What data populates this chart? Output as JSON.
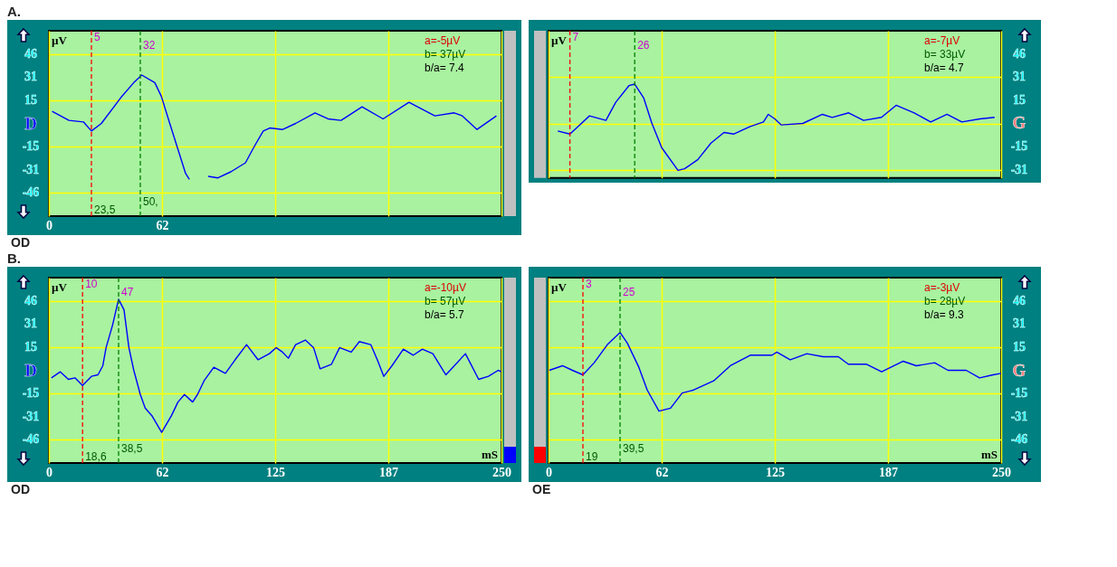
{
  "chart_data": [
    {
      "type": "line",
      "title": "A.",
      "ylabel": "µV",
      "xlim": [
        0,
        250
      ],
      "ylim": [
        -61.3,
        61.3
      ],
      "grid": true,
      "xticks": [
        0,
        {
          "value": 62.5,
          "label": "62"
        },
        {
          "value": 125,
          "label": null
        },
        {
          "value": 187.5,
          "label": null
        },
        {
          "value": 250,
          "label": null
        }
      ],
      "yticks": [
        {
          "value": -46,
          "label": "-46"
        },
        {
          "value": -30.7,
          "label": "-31"
        },
        {
          "value": -15.3,
          "label": "-15"
        },
        {
          "value": 0,
          "label": "D"
        },
        {
          "value": 15.3,
          "label": "15"
        },
        {
          "value": 30.7,
          "label": "31"
        },
        {
          "value": 46,
          "label": "46"
        }
      ],
      "x": [
        1.8,
        11.1,
        19.1,
        23.5,
        29,
        39.7,
        46.9,
        51.3,
        58.5,
        62.1,
        66.5,
        71,
        75.5,
        77.6,
        82,
        88,
        93.4,
        100.5,
        108.6,
        113.1,
        118.4,
        122,
        129.2,
        136.3,
        147,
        154.2,
        161.4,
        173,
        184.6,
        198.9,
        213.2,
        223.9,
        228.4,
        236.5,
        247.2
      ],
      "series": [
        {
          "color": "#0000ff",
          "values": [
            8,
            2,
            1,
            -5,
            0,
            17,
            27,
            32,
            27,
            18,
            1,
            -16,
            -33,
            -37,
            null,
            -35,
            -36,
            -32,
            -26,
            -16,
            -5,
            -3,
            -4,
            0,
            7,
            3,
            2,
            11,
            3,
            14,
            5,
            7,
            5,
            -4,
            5
          ]
        }
      ],
      "ref_lines": [
        {
          "axis": "x",
          "value": 23.5,
          "color": "#ff0000",
          "line_style": "dashed"
        },
        {
          "axis": "x",
          "value": 50.5,
          "color": "#008000",
          "line_style": "dashed"
        }
      ],
      "annotations": [
        "a=-5µV",
        "b= 37µV",
        "b/a= 7.4",
        "OD",
        {
          "text": "5",
          "x": 23.5,
          "y": 57
        },
        {
          "text": "32",
          "x": 50.5,
          "y": 52
        },
        {
          "text": "23,5",
          "x": 23.5,
          "y": -57
        },
        {
          "text": "50,",
          "x": 50.5,
          "y": -52
        }
      ]
    },
    {
      "type": "line",
      "ylabel": "µV",
      "xlim": [
        0,
        250
      ],
      "ylim": [
        -36,
        61.3
      ],
      "grid": true,
      "tick_labels": "y",
      "xticks": [
        0,
        62.5,
        125,
        187.5,
        250
      ],
      "yticks": [
        {
          "value": -30.7,
          "label": "-31"
        },
        {
          "value": -15.3,
          "label": "-15"
        },
        {
          "value": 0,
          "label": "G"
        },
        {
          "value": 15.3,
          "label": "15"
        },
        {
          "value": 30.7,
          "label": "31"
        },
        {
          "value": 46,
          "label": "46"
        }
      ],
      "x": [
        5.1,
        11.8,
        17.2,
        22.6,
        31.7,
        37.1,
        44.4,
        47.6,
        52.5,
        57.1,
        62.5,
        71.5,
        75.1,
        82.4,
        89.7,
        96.9,
        102.4,
        111.4,
        118.7,
        121.4,
        125,
        128.6,
        140.4,
        151.3,
        156.7,
        165.8,
        174,
        183.9,
        192,
        202,
        211.1,
        220.1,
        228.3,
        238.2,
        246.4
      ],
      "series": [
        {
          "color": "#0000ff",
          "values": [
            -5,
            -7,
            -1,
            5,
            2,
            14,
            25,
            26,
            17,
            0,
            -16,
            -31,
            -30,
            -24,
            -13,
            -6,
            -7,
            -2,
            1,
            6,
            3,
            -1,
            0,
            6,
            4,
            7,
            2,
            4,
            12,
            7,
            1,
            6,
            1,
            3,
            4
          ]
        }
      ],
      "ref_lines": [
        {
          "axis": "x",
          "value": 11.8,
          "color": "#ff0000",
          "line_style": "dashed"
        },
        {
          "axis": "x",
          "value": 47.6,
          "color": "#008000",
          "line_style": "dashed"
        }
      ],
      "annotations": [
        "a=-7µV",
        "b= 33µV",
        "b/a= 4.7",
        {
          "text": "7",
          "x": 11.8,
          "y": 57
        },
        {
          "text": "26",
          "x": 47.6,
          "y": 52
        }
      ]
    },
    {
      "type": "line",
      "title": "B.",
      "ylabel": "µV",
      "xlabel": "mS",
      "xlim": [
        0,
        250
      ],
      "ylim": [
        -61.3,
        61.3
      ],
      "grid": true,
      "xticks": [
        0,
        {
          "value": 62.5,
          "label": "62"
        },
        125,
        {
          "value": 187.5,
          "label": "187"
        },
        250
      ],
      "yticks": [
        {
          "value": -46,
          "label": "-46"
        },
        {
          "value": -30.7,
          "label": "-31"
        },
        {
          "value": -15.3,
          "label": "-15"
        },
        {
          "value": 0,
          "label": "D"
        },
        {
          "value": 15.3,
          "label": "15"
        },
        {
          "value": 30.7,
          "label": "31"
        },
        {
          "value": 46,
          "label": "46"
        }
      ],
      "x": [
        1.4,
        6.3,
        10.8,
        14.4,
        18.6,
        23.5,
        27.1,
        29.8,
        31.6,
        35.2,
        38.5,
        41.5,
        44.2,
        46.9,
        50.5,
        53.2,
        56.9,
        62.3,
        67.7,
        71.3,
        74.9,
        79.4,
        82.1,
        85.7,
        91.1,
        97.5,
        102.9,
        109.2,
        115.5,
        121.8,
        125.5,
        129.1,
        132.3,
        136.3,
        141.7,
        146.2,
        149.8,
        156.1,
        160.6,
        167,
        171.5,
        177.8,
        181.4,
        185,
        189.5,
        195.8,
        201.3,
        206.3,
        212.1,
        219.3,
        230.1,
        237.4,
        242.8,
        248.2,
        250
      ],
      "series": [
        {
          "color": "#0000ff",
          "values": [
            -5,
            -1,
            -6,
            -5,
            -10,
            -4,
            -3,
            3,
            15,
            30,
            47,
            40,
            15,
            0,
            -16,
            -25,
            -30,
            -41,
            -30,
            -21,
            -16,
            -21,
            -16,
            -7,
            2,
            -2,
            7,
            17,
            7,
            11,
            15,
            12,
            8,
            17,
            20,
            15,
            1,
            4,
            15,
            12,
            19,
            17,
            7,
            -4,
            3,
            14,
            10,
            14,
            11,
            -3,
            11,
            -6,
            -4,
            0,
            -1
          ]
        }
      ],
      "ref_lines": [
        {
          "axis": "x",
          "value": 18.6,
          "color": "#ff0000",
          "line_style": "dashed"
        },
        {
          "axis": "x",
          "value": 38.5,
          "color": "#008000",
          "line_style": "dashed"
        }
      ],
      "annotations": [
        "a=-10µV",
        "b= 57µV",
        "b/a= 5.7",
        "OD",
        {
          "text": "10",
          "x": 18.6,
          "y": 57
        },
        {
          "text": "47",
          "x": 38.5,
          "y": 52
        },
        {
          "text": "18,6",
          "x": 18.6,
          "y": -57
        },
        {
          "text": "38,5",
          "x": 38.5,
          "y": -52
        }
      ]
    },
    {
      "type": "line",
      "ylabel": "µV",
      "xlabel": "mS",
      "xlim": [
        0,
        250
      ],
      "ylim": [
        -61.3,
        61.3
      ],
      "grid": true,
      "xticks": [
        0,
        {
          "value": 62.5,
          "label": "62"
        },
        125,
        {
          "value": 187.5,
          "label": "187"
        },
        250
      ],
      "yticks": [
        {
          "value": -46,
          "label": "-46"
        },
        {
          "value": -30.7,
          "label": "-31"
        },
        {
          "value": -15.3,
          "label": "-15"
        },
        {
          "value": 0,
          "label": "G"
        },
        {
          "value": 15.3,
          "label": "15"
        },
        {
          "value": 30.7,
          "label": "31"
        },
        {
          "value": 46,
          "label": "46"
        }
      ],
      "x": [
        0.4,
        7.7,
        13.2,
        19,
        25.2,
        32.5,
        39.5,
        43.5,
        49.9,
        54.5,
        61,
        67.4,
        73.8,
        80.2,
        91.2,
        100.4,
        111.4,
        123.4,
        126.1,
        133.5,
        142.7,
        151.8,
        160.1,
        165.6,
        175.7,
        184,
        195.9,
        203.2,
        213.3,
        220.6,
        230.7,
        238.1,
        245.5,
        250
      ],
      "series": [
        {
          "color": "#0000ff",
          "values": [
            0,
            3,
            0,
            -3,
            5,
            17,
            25,
            18,
            2,
            -13,
            -27,
            -25,
            -15,
            -13,
            -7,
            3,
            10,
            10,
            12,
            7,
            11,
            9,
            9,
            4,
            4,
            -1,
            6,
            3,
            5,
            0,
            0,
            -5,
            -3,
            -2
          ]
        }
      ],
      "ref_lines": [
        {
          "axis": "x",
          "value": 19,
          "color": "#ff0000",
          "line_style": "dashed"
        },
        {
          "axis": "x",
          "value": 39.5,
          "color": "#008000",
          "line_style": "dashed"
        }
      ],
      "annotations": [
        "a=-3µV",
        "b= 28µV",
        "b/a= 9.3",
        "OE",
        {
          "text": "3",
          "x": 19,
          "y": 57
        },
        {
          "text": "25",
          "x": 39.5,
          "y": 52
        },
        {
          "text": "19",
          "x": 19,
          "y": -57
        },
        {
          "text": "39,5",
          "x": 39.5,
          "y": -52
        }
      ]
    }
  ]
}
